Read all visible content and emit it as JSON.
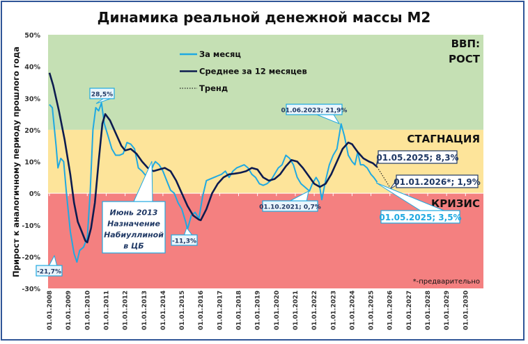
{
  "chart_data": {
    "type": "line",
    "title": "Динамика реальной денежной массы М2",
    "ylabel": "Прирост к аналогичному периоду прошлого года",
    "xlabel": "",
    "ylim": [
      -30,
      50
    ],
    "yticks": [
      "-30%",
      "-20%",
      "-10%",
      "0%",
      "10%",
      "20%",
      "30%",
      "40%",
      "50%"
    ],
    "ytick_values": [
      -30,
      -20,
      -10,
      0,
      10,
      20,
      30,
      40,
      50
    ],
    "xlim": [
      2008,
      2031
    ],
    "xticks": [
      "01.01.2008",
      "01.01.2009",
      "01.01.2010",
      "01.01.2011",
      "01.01.2012",
      "01.01.2013",
      "01.01.2014",
      "01.01.2015",
      "01.01.2016",
      "01.01.2017",
      "01.01.2018",
      "01.01.2019",
      "01.01.2020",
      "01.01.2021",
      "01.01.2022",
      "01.01.2023",
      "01.01.2024",
      "01.01.2025",
      "01.01.2026",
      "01.01.2027",
      "01.01.2028",
      "01.01.2029",
      "01.01.2030"
    ],
    "grid": false,
    "legend_placement": "top-center",
    "zones": [
      {
        "label": "ВВП:\nРОСТ",
        "lines": [
          "ВВП:",
          "РОСТ"
        ],
        "from": 20,
        "to": 50,
        "color": "#c5e0b4"
      },
      {
        "label": "СТАГНАЦИЯ",
        "lines": [
          "СТАГНАЦИЯ"
        ],
        "from": 0,
        "to": 20,
        "color": "#fde49a"
      },
      {
        "label": "КРИЗИС",
        "lines": [
          "КРИЗИС"
        ],
        "from": -30,
        "to": 0,
        "color": "#f48080"
      }
    ],
    "series": [
      {
        "name": "За месяц",
        "color": "#1fa9e1",
        "style": "solid",
        "x": [
          2008.0,
          2008.15,
          2008.35,
          2008.45,
          2008.6,
          2008.75,
          2008.9,
          2009.1,
          2009.3,
          2009.45,
          2009.6,
          2009.8,
          2010.0,
          2010.15,
          2010.3,
          2010.45,
          2010.6,
          2010.75,
          2010.9,
          2011.1,
          2011.3,
          2011.5,
          2011.7,
          2011.9,
          2012.1,
          2012.3,
          2012.5,
          2012.7,
          2012.9,
          2013.1,
          2013.3,
          2013.5,
          2013.6,
          2013.8,
          2014.0,
          2014.2,
          2014.4,
          2014.6,
          2014.8,
          2015.0,
          2015.2,
          2015.3,
          2015.5,
          2015.7,
          2015.9,
          2016.1,
          2016.3,
          2016.5,
          2016.7,
          2016.9,
          2017.1,
          2017.3,
          2017.5,
          2017.7,
          2017.9,
          2018.1,
          2018.3,
          2018.5,
          2018.7,
          2018.9,
          2019.1,
          2019.3,
          2019.5,
          2019.7,
          2019.9,
          2020.1,
          2020.3,
          2020.5,
          2020.7,
          2020.9,
          2021.1,
          2021.3,
          2021.5,
          2021.75,
          2021.9,
          2022.1,
          2022.25,
          2022.4,
          2022.6,
          2022.8,
          2023.0,
          2023.2,
          2023.42,
          2023.6,
          2023.8,
          2024.0,
          2024.15,
          2024.3,
          2024.45,
          2024.6,
          2024.8,
          2025.0,
          2025.15,
          2025.33
        ],
        "values": [
          28,
          27,
          15,
          8,
          11,
          10,
          0,
          -12,
          -19,
          -21.7,
          -18,
          -17,
          -14,
          0,
          20,
          27,
          26,
          28.5,
          22,
          18,
          14,
          12,
          12,
          12.5,
          16,
          15.5,
          14,
          8,
          7,
          5.5,
          6,
          9,
          10,
          9,
          7,
          4,
          1,
          0,
          -3,
          -5,
          -9,
          -11.3,
          -7,
          -6,
          -8,
          -1,
          4,
          4.5,
          5,
          5.5,
          6,
          7,
          5,
          7,
          8,
          8.5,
          9,
          8,
          6,
          5,
          3,
          2.5,
          3,
          4,
          6,
          8,
          9,
          12,
          11,
          9,
          5,
          3,
          2,
          0.7,
          3,
          5,
          3.5,
          -2,
          4,
          9,
          12,
          14,
          21.9,
          18,
          12,
          10,
          9,
          13,
          9,
          9,
          8,
          6,
          5,
          3.5
        ]
      },
      {
        "name": "Среднее за 12 месяцев",
        "color": "#0d1b4f",
        "style": "solid",
        "x": [
          2008.0,
          2008.2,
          2008.5,
          2008.8,
          2009.1,
          2009.3,
          2009.5,
          2009.7,
          2009.9,
          2010.0,
          2010.2,
          2010.4,
          2010.6,
          2010.8,
          2010.95,
          2011.2,
          2011.5,
          2011.8,
          2012.0,
          2012.3,
          2012.6,
          2012.9,
          2013.2,
          2013.5,
          2013.8,
          2014.1,
          2014.4,
          2014.7,
          2015.0,
          2015.3,
          2015.6,
          2015.9,
          2016.0,
          2016.3,
          2016.6,
          2016.9,
          2017.2,
          2017.5,
          2017.8,
          2018.1,
          2018.4,
          2018.7,
          2019.0,
          2019.3,
          2019.6,
          2019.9,
          2020.2,
          2020.5,
          2020.8,
          2021.1,
          2021.4,
          2021.7,
          2022.0,
          2022.3,
          2022.6,
          2022.9,
          2023.2,
          2023.5,
          2023.8,
          2024.0,
          2024.3,
          2024.6,
          2024.9,
          2025.1,
          2025.33
        ],
        "values": [
          38,
          34,
          26,
          17,
          6,
          -3,
          -9,
          -12,
          -15,
          -15.5,
          -11,
          -3,
          10,
          22,
          25,
          23,
          19,
          15,
          13.5,
          14,
          12.5,
          10,
          8,
          7,
          7.5,
          8,
          7,
          4,
          0,
          -4,
          -7,
          -8.3,
          -8.5,
          -5,
          0,
          3,
          5,
          6,
          6.2,
          6.5,
          7,
          8,
          7.5,
          5,
          4,
          4.5,
          6,
          8.5,
          10.5,
          10,
          8,
          5.5,
          3,
          2,
          3,
          6,
          10,
          14,
          16,
          15.5,
          13,
          11,
          10,
          9.5,
          8.3
        ]
      },
      {
        "name": "Тренд",
        "color": "#222222",
        "style": "dotted",
        "x": [
          2025.33,
          2026.0
        ],
        "values": [
          8.3,
          1.9
        ]
      }
    ],
    "annotations": [
      {
        "text": "28,5%",
        "color": "#1f3864"
      },
      {
        "text": "-21,7%",
        "color": "#1f3864"
      },
      {
        "text": "Июнь 2013\nНазначение\nНабиуллиной\nв ЦБ",
        "lines": [
          "Июнь 2013",
          "Назначение",
          "Набиуллиной",
          "в ЦБ"
        ],
        "color": "#1f3864"
      },
      {
        "text": "-11,3%",
        "color": "#1f3864"
      },
      {
        "text": "01.10.2021; 0,7%",
        "color": "#1f3864"
      },
      {
        "text": "01.06.2023; 21,9%",
        "color": "#1f3864"
      },
      {
        "text": "01.05.2025; 8,3%",
        "color": "#1f3864"
      },
      {
        "text": "01.01.2026*; 1,9%",
        "color": "#1f3864"
      },
      {
        "text": "01.05.2025; 3,5%",
        "color": "#1fa9e1"
      }
    ],
    "footnote": "*-предварительно"
  }
}
